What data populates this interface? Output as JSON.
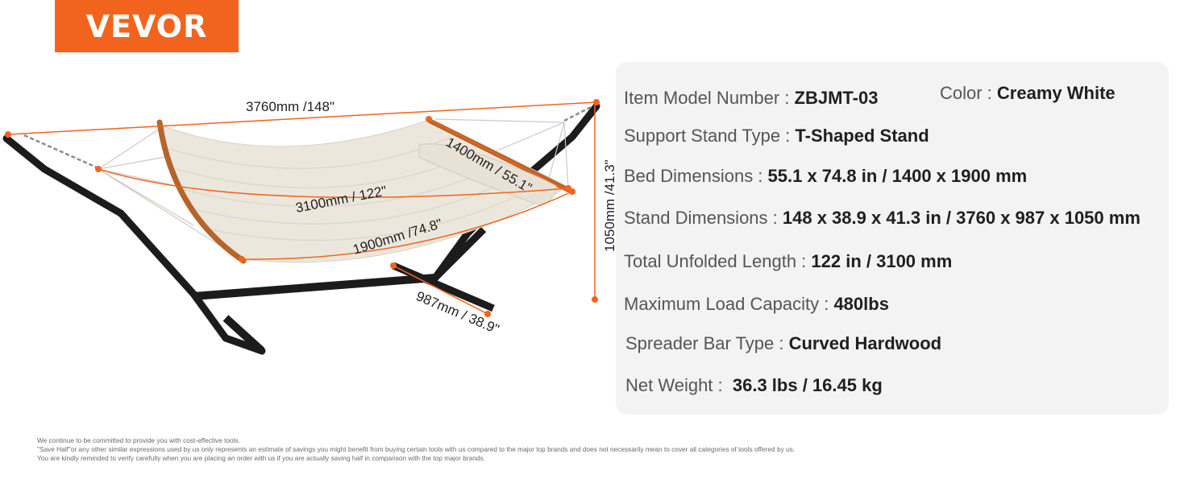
{
  "brand": {
    "name": "VEVOR",
    "color": "#f2641e"
  },
  "diagram": {
    "dim_length_total": "3760mm /148\"",
    "dim_unfolded": "3100mm / 122\"",
    "dim_bed_length": "1900mm /74.8\"",
    "dim_bed_width": "1400mm / 55.1\"",
    "dim_height": "1050mm /41.3\"",
    "dim_depth": "987mm / 38.9\"",
    "accent_color": "#f2641e"
  },
  "specs": {
    "model": {
      "label": "Item Model Number : ",
      "value": "ZBJMT-03"
    },
    "color": {
      "label": "Color : ",
      "value": "Creamy White"
    },
    "stand_type": {
      "label": "Support Stand Type : ",
      "value": "T-Shaped Stand"
    },
    "bed_dimensions": {
      "label": "Bed Dimensions : ",
      "value": "55.1 x 74.8 in / 1400 x 1900 mm"
    },
    "stand_dimensions": {
      "label": "Stand Dimensions : ",
      "value": "148 x 38.9 x 41.3 in / 3760 x 987 x 1050 mm"
    },
    "unfolded_length": {
      "label": "Total Unfolded Length : ",
      "value": "122 in / 3100 mm"
    },
    "load_capacity": {
      "label": "Maximum Load Capacity : ",
      "value": "480lbs"
    },
    "spreader_bar": {
      "label": "Spreader Bar Type : ",
      "value": "Curved Hardwood"
    },
    "net_weight": {
      "label": "Net Weight :  ",
      "value": "36.3 lbs / 16.45 kg"
    }
  },
  "disclaimer": {
    "line1": "We continue to be committed to provide you with cost-effective tools.",
    "line2": "\"Save Half\"or any other similar expressions used by us only represents an estimate of savings you might benefit from buying certain tools with us compared to the major top brands and does not necessarily mean to cover all categories of tools offered by us.",
    "line3": "You are kindly reminded to verify carefully when you are placing an order with us if you are actually saving half in comparison with the top major brands."
  }
}
